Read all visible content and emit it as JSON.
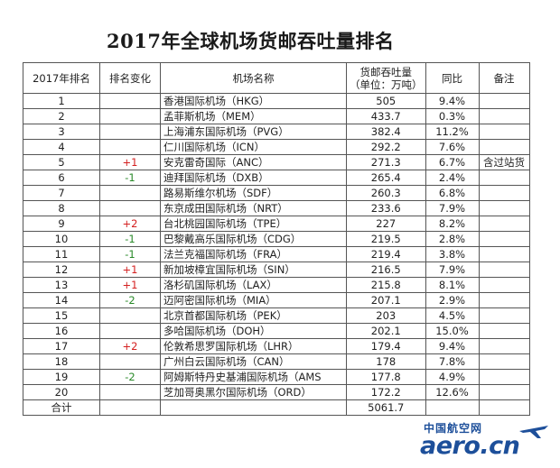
{
  "title": "2017年全球机场货邮吞吐量排名",
  "headers": {
    "rank": "2017年排名",
    "change": "排名变化",
    "airport": "机场名称",
    "volume_line1": "货邮吞吐量",
    "volume_line2": "（单位：万吨）",
    "yoy": "同比",
    "note": "备注"
  },
  "rows": [
    {
      "rank": "1",
      "change": "",
      "airport": "香港国际机场（HKG）",
      "volume": "505",
      "yoy": "9.4%",
      "note": ""
    },
    {
      "rank": "2",
      "change": "",
      "airport": "孟菲斯机场（MEM）",
      "volume": "433.7",
      "yoy": "0.3%",
      "note": ""
    },
    {
      "rank": "3",
      "change": "",
      "airport": "上海浦东国际机场（PVG）",
      "volume": "382.4",
      "yoy": "11.2%",
      "note": ""
    },
    {
      "rank": "4",
      "change": "",
      "airport": "仁川国际机场（ICN）",
      "volume": "292.2",
      "yoy": "7.6%",
      "note": ""
    },
    {
      "rank": "5",
      "change": "+1",
      "airport": "安克雷奇国际（ANC）",
      "volume": "271.3",
      "yoy": "6.7%",
      "note": "含过站货"
    },
    {
      "rank": "6",
      "change": "-1",
      "airport": "迪拜国际机场（DXB）",
      "volume": "265.4",
      "yoy": "2.4%",
      "note": ""
    },
    {
      "rank": "7",
      "change": "",
      "airport": "路易斯维尔机场（SDF）",
      "volume": "260.3",
      "yoy": "6.8%",
      "note": ""
    },
    {
      "rank": "8",
      "change": "",
      "airport": "东京成田国际机场（NRT）",
      "volume": "233.6",
      "yoy": "7.9%",
      "note": ""
    },
    {
      "rank": "9",
      "change": "+2",
      "airport": "台北桃园国际机场（TPE）",
      "volume": "227",
      "yoy": "8.2%",
      "note": ""
    },
    {
      "rank": "10",
      "change": "-1",
      "airport": "巴黎戴高乐国际机场（CDG）",
      "volume": "219.5",
      "yoy": "2.8%",
      "note": ""
    },
    {
      "rank": "11",
      "change": "-1",
      "airport": "法兰克福国际机场（FRA）",
      "volume": "219.4",
      "yoy": "3.8%",
      "note": ""
    },
    {
      "rank": "12",
      "change": "+1",
      "airport": "新加坡樟宜国际机场（SIN）",
      "volume": "216.5",
      "yoy": "7.9%",
      "note": ""
    },
    {
      "rank": "13",
      "change": "+1",
      "airport": "洛杉矶国际机场（LAX）",
      "volume": "215.8",
      "yoy": "8.1%",
      "note": ""
    },
    {
      "rank": "14",
      "change": "-2",
      "airport": "迈阿密国际机场（MIA）",
      "volume": "207.1",
      "yoy": "2.9%",
      "note": ""
    },
    {
      "rank": "15",
      "change": "",
      "airport": "北京首都国际机场（PEK）",
      "volume": "203",
      "yoy": "4.5%",
      "note": ""
    },
    {
      "rank": "16",
      "change": "",
      "airport": "多哈国际机场（DOH）",
      "volume": "202.1",
      "yoy": "15.0%",
      "note": ""
    },
    {
      "rank": "17",
      "change": "+2",
      "airport": "伦敦希思罗国际机场（LHR）",
      "volume": "179.4",
      "yoy": "9.4%",
      "note": ""
    },
    {
      "rank": "18",
      "change": "",
      "airport": "广州白云国际机场（CAN）",
      "volume": "178",
      "yoy": "7.8%",
      "note": ""
    },
    {
      "rank": "19",
      "change": "-2",
      "airport": "阿姆斯特丹史基浦国际机场（AMS",
      "volume": "177.8",
      "yoy": "4.9%",
      "note": ""
    },
    {
      "rank": "20",
      "change": "",
      "airport": "芝加哥奥黑尔国际机场（ORD）",
      "volume": "172.2",
      "yoy": "12.6%",
      "note": ""
    }
  ],
  "total": {
    "label": "合计",
    "volume": "5061.7"
  },
  "watermark": {
    "cn": "中国航空网",
    "en": "aero.cn"
  },
  "colors": {
    "increase": "#d42020",
    "decrease": "#2a8a2a",
    "watermark": "#1d4f9a"
  }
}
